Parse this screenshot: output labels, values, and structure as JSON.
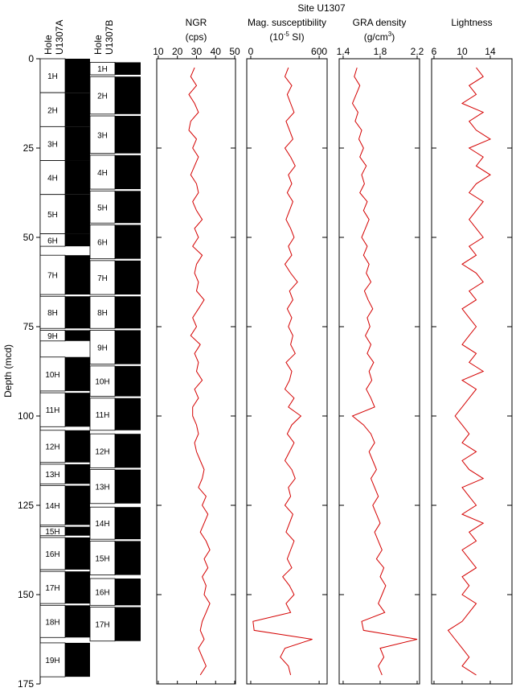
{
  "chart_data": {
    "type": "well-log",
    "title": "Site U1307",
    "y_label": "Depth (mcd)",
    "ylim": [
      0,
      175
    ],
    "yticks": [
      0,
      25,
      50,
      75,
      100,
      125,
      150,
      175
    ],
    "holes": [
      {
        "header": [
          "Hole",
          "U1307A"
        ],
        "cores": [
          {
            "label": "1H",
            "top": 0,
            "bottom": 9.5
          },
          {
            "label": "2H",
            "top": 9.5,
            "bottom": 19
          },
          {
            "label": "3H",
            "top": 19,
            "bottom": 28.5
          },
          {
            "label": "4H",
            "top": 28.5,
            "bottom": 38
          },
          {
            "label": "5H",
            "top": 38,
            "bottom": 49
          },
          {
            "label": "6H",
            "top": 49,
            "bottom": 52.5
          },
          {
            "label": "7H",
            "top": 55,
            "bottom": 66
          },
          {
            "label": "8H",
            "top": 66.5,
            "bottom": 75.5
          },
          {
            "label": "9H",
            "top": 76,
            "bottom": 79
          },
          {
            "label": "10H",
            "top": 83.5,
            "bottom": 93
          },
          {
            "label": "11H",
            "top": 93.5,
            "bottom": 103
          },
          {
            "label": "12H",
            "top": 104,
            "bottom": 113
          },
          {
            "label": "13H",
            "top": 113.5,
            "bottom": 119
          },
          {
            "label": "14H",
            "top": 119.5,
            "bottom": 130.5
          },
          {
            "label": "15H",
            "top": 131,
            "bottom": 133.5
          },
          {
            "label": "16H",
            "top": 134,
            "bottom": 143
          },
          {
            "label": "17H",
            "top": 143.5,
            "bottom": 152.5
          },
          {
            "label": "18H",
            "top": 153,
            "bottom": 162
          },
          {
            "label": "19H",
            "top": 163.5,
            "bottom": 173
          }
        ]
      },
      {
        "header": [
          "Hole",
          "U1307B"
        ],
        "cores": [
          {
            "label": "1H",
            "top": 1,
            "bottom": 4.5
          },
          {
            "label": "2H",
            "top": 5,
            "bottom": 15.5
          },
          {
            "label": "3H",
            "top": 16,
            "bottom": 26.5
          },
          {
            "label": "4H",
            "top": 27,
            "bottom": 36.5
          },
          {
            "label": "5H",
            "top": 37,
            "bottom": 46
          },
          {
            "label": "6H",
            "top": 46.5,
            "bottom": 56
          },
          {
            "label": "7H",
            "top": 56.5,
            "bottom": 66
          },
          {
            "label": "8H",
            "top": 66.5,
            "bottom": 75.5
          },
          {
            "label": "9H",
            "top": 76,
            "bottom": 85.5
          },
          {
            "label": "10H",
            "top": 86,
            "bottom": 94.5
          },
          {
            "label": "11H",
            "top": 95,
            "bottom": 104
          },
          {
            "label": "12H",
            "top": 105,
            "bottom": 114.5
          },
          {
            "label": "13H",
            "top": 115,
            "bottom": 124.5
          },
          {
            "label": "14H",
            "top": 125.5,
            "bottom": 134.5
          },
          {
            "label": "15H",
            "top": 135,
            "bottom": 144.5
          },
          {
            "label": "16H",
            "top": 145.5,
            "bottom": 153
          },
          {
            "label": "17H",
            "top": 153.5,
            "bottom": 163
          }
        ]
      }
    ],
    "depth": [
      0,
      2.5,
      5,
      7.5,
      10,
      12.5,
      15,
      17.5,
      20,
      22.5,
      25,
      27.5,
      30,
      32.5,
      35,
      37.5,
      40,
      42.5,
      45,
      47.5,
      50,
      52.5,
      55,
      57.5,
      60,
      62.5,
      65,
      67.5,
      70,
      72.5,
      75,
      77.5,
      80,
      82.5,
      85,
      87.5,
      90,
      92.5,
      95,
      97.5,
      100,
      102.5,
      105,
      107.5,
      110,
      112.5,
      115,
      117.5,
      120,
      122.5,
      125,
      127.5,
      130,
      132.5,
      135,
      137.5,
      140,
      142.5,
      145,
      147.5,
      150,
      152.5,
      155,
      157.5,
      160,
      162.5,
      165,
      167.5,
      170,
      172.5,
      175
    ],
    "tracks": [
      {
        "title": "NGR",
        "unit": [
          {
            "text": "(cps)"
          }
        ],
        "xlim": [
          9.2,
          50.4
        ],
        "xticks": [
          10,
          20,
          30,
          40,
          50
        ],
        "color": "#d40000",
        "values": [
          null,
          29,
          27,
          30,
          26,
          29,
          31,
          27,
          26,
          30,
          28,
          31,
          29,
          27,
          30,
          31,
          28,
          30,
          33,
          29,
          31,
          28,
          33,
          30,
          29,
          31,
          30,
          34,
          31,
          28,
          30,
          27,
          32,
          29,
          31,
          30,
          33,
          29,
          31,
          28,
          28,
          30,
          31,
          29,
          30,
          32,
          34,
          33,
          31,
          35,
          33,
          36,
          34,
          32,
          35,
          37,
          34,
          36,
          33,
          35,
          34,
          37,
          35,
          33,
          32,
          34,
          31,
          33,
          35,
          32,
          null
        ]
      },
      {
        "title": "Mag. susceptibility",
        "unit": [
          {
            "text": "(10"
          },
          {
            "text": "-5",
            "sup": true
          },
          {
            "text": " SI)"
          }
        ],
        "xlim": [
          -35,
          670
        ],
        "xticks": [
          0,
          600
        ],
        "color": "#d40000",
        "values": [
          null,
          330,
          300,
          360,
          320,
          350,
          380,
          310,
          340,
          370,
          300,
          350,
          390,
          330,
          360,
          320,
          370,
          340,
          310,
          350,
          380,
          330,
          360,
          300,
          350,
          410,
          340,
          370,
          320,
          360,
          330,
          370,
          350,
          390,
          310,
          360,
          340,
          300,
          380,
          330,
          440,
          360,
          320,
          380,
          340,
          300,
          360,
          390,
          330,
          350,
          300,
          370,
          340,
          310,
          380,
          350,
          320,
          360,
          280,
          340,
          380,
          310,
          350,
          20,
          30,
          540,
          300,
          260,
          330,
          350,
          null
        ]
      },
      {
        "title": "GRA density",
        "unit": [
          {
            "text": "(g/cm"
          },
          {
            "text": "3",
            "sup": true
          },
          {
            "text": ")"
          }
        ],
        "xlim": [
          1.357,
          2.226
        ],
        "xticks": [
          1.4,
          1.8,
          2.2
        ],
        "color": "#d40000",
        "values": [
          null,
          1.55,
          1.52,
          1.58,
          1.54,
          1.5,
          1.56,
          1.53,
          1.6,
          1.57,
          1.62,
          1.58,
          1.65,
          1.6,
          1.63,
          1.58,
          1.66,
          1.62,
          1.68,
          1.64,
          1.6,
          1.66,
          1.62,
          1.68,
          1.65,
          1.7,
          1.63,
          1.67,
          1.72,
          1.66,
          1.69,
          1.64,
          1.7,
          1.66,
          1.73,
          1.68,
          1.71,
          1.65,
          1.7,
          1.74,
          1.5,
          1.62,
          1.7,
          1.74,
          1.68,
          1.72,
          1.76,
          1.7,
          1.74,
          1.78,
          1.72,
          1.76,
          1.8,
          1.74,
          1.78,
          1.82,
          1.76,
          1.84,
          1.8,
          1.86,
          1.82,
          1.78,
          1.85,
          1.6,
          1.62,
          2.2,
          1.8,
          1.84,
          1.78,
          1.82,
          null
        ]
      },
      {
        "title": "Lightness",
        "unit": [],
        "xlim": [
          5.66,
          17.09
        ],
        "xticks": [
          6,
          10,
          14
        ],
        "color": "#d40000",
        "values": [
          null,
          12,
          13,
          11,
          12,
          10,
          13,
          11,
          12,
          14,
          11,
          13,
          12,
          14,
          12,
          11,
          13,
          12,
          11,
          12,
          13,
          11,
          12,
          10,
          12,
          13,
          11,
          12,
          10,
          11,
          12,
          11,
          10,
          12,
          11,
          13,
          10,
          12,
          11,
          10,
          9,
          10,
          11,
          10,
          12,
          10,
          11,
          13,
          10,
          11,
          12,
          10,
          13,
          11,
          12,
          10,
          11,
          12,
          10,
          11,
          10,
          12,
          11,
          10,
          8,
          9,
          10,
          11,
          10,
          12,
          null
        ]
      }
    ]
  }
}
